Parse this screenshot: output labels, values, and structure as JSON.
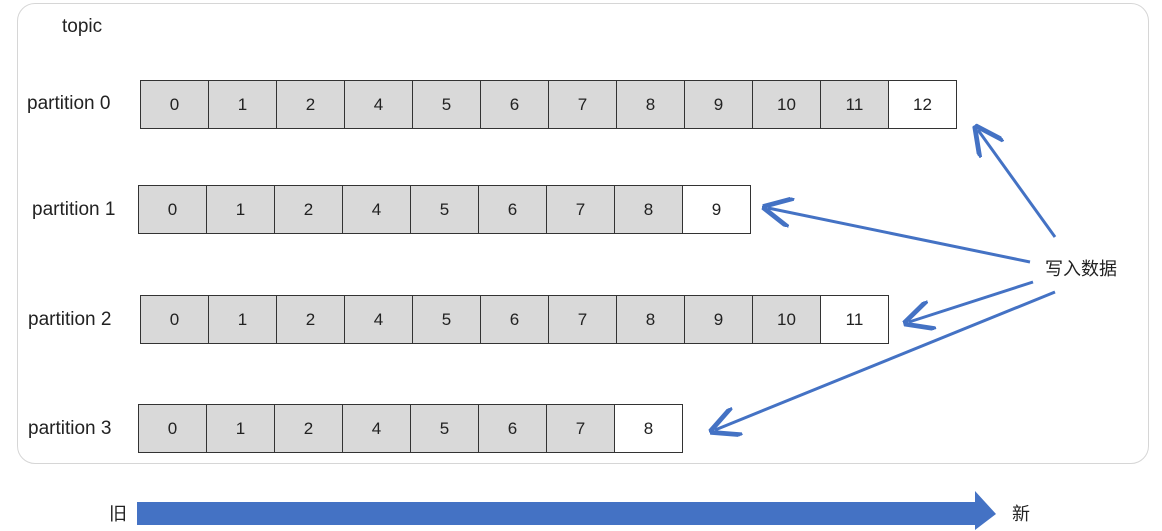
{
  "topic_label": "topic",
  "partitions": [
    {
      "label": "partition 0",
      "offsets": [
        "0",
        "1",
        "2",
        "4",
        "5",
        "6",
        "7",
        "8",
        "9",
        "10",
        "11",
        "12"
      ]
    },
    {
      "label": "partition 1",
      "offsets": [
        "0",
        "1",
        "2",
        "4",
        "5",
        "6",
        "7",
        "8",
        "9"
      ]
    },
    {
      "label": "partition 2",
      "offsets": [
        "0",
        "1",
        "2",
        "4",
        "5",
        "6",
        "7",
        "8",
        "9",
        "10",
        "11"
      ]
    },
    {
      "label": "partition 3",
      "offsets": [
        "0",
        "1",
        "2",
        "4",
        "5",
        "6",
        "7",
        "8"
      ]
    }
  ],
  "write_label": "写入数据",
  "timeline": {
    "old_label": "旧",
    "new_label": "新"
  },
  "colors": {
    "arrow": "#4472c4",
    "cell_fill": "#d9d9d9",
    "new_cell_fill": "#ffffff",
    "border": "#333333"
  }
}
